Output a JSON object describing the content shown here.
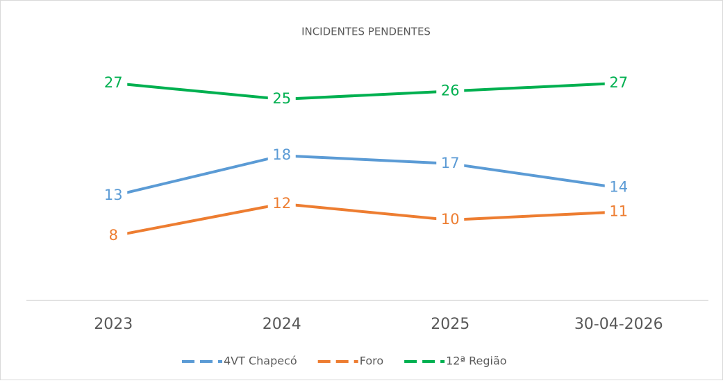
{
  "chart_data": {
    "type": "line",
    "title": "INCIDENTES PENDENTES",
    "categories": [
      "2023",
      "2024",
      "2025",
      "30-04-2026"
    ],
    "series": [
      {
        "name": "4VT Chapecó",
        "color": "#5b9bd5",
        "values": [
          13,
          18,
          17,
          14
        ]
      },
      {
        "name": "Foro",
        "color": "#ed7d31",
        "values": [
          8,
          12,
          10,
          11
        ]
      },
      {
        "name": "12ª Região",
        "color": "#00b050",
        "values": [
          27,
          25,
          26,
          27
        ]
      }
    ],
    "ylim": [
      0,
      30
    ],
    "legend": "bottom"
  }
}
